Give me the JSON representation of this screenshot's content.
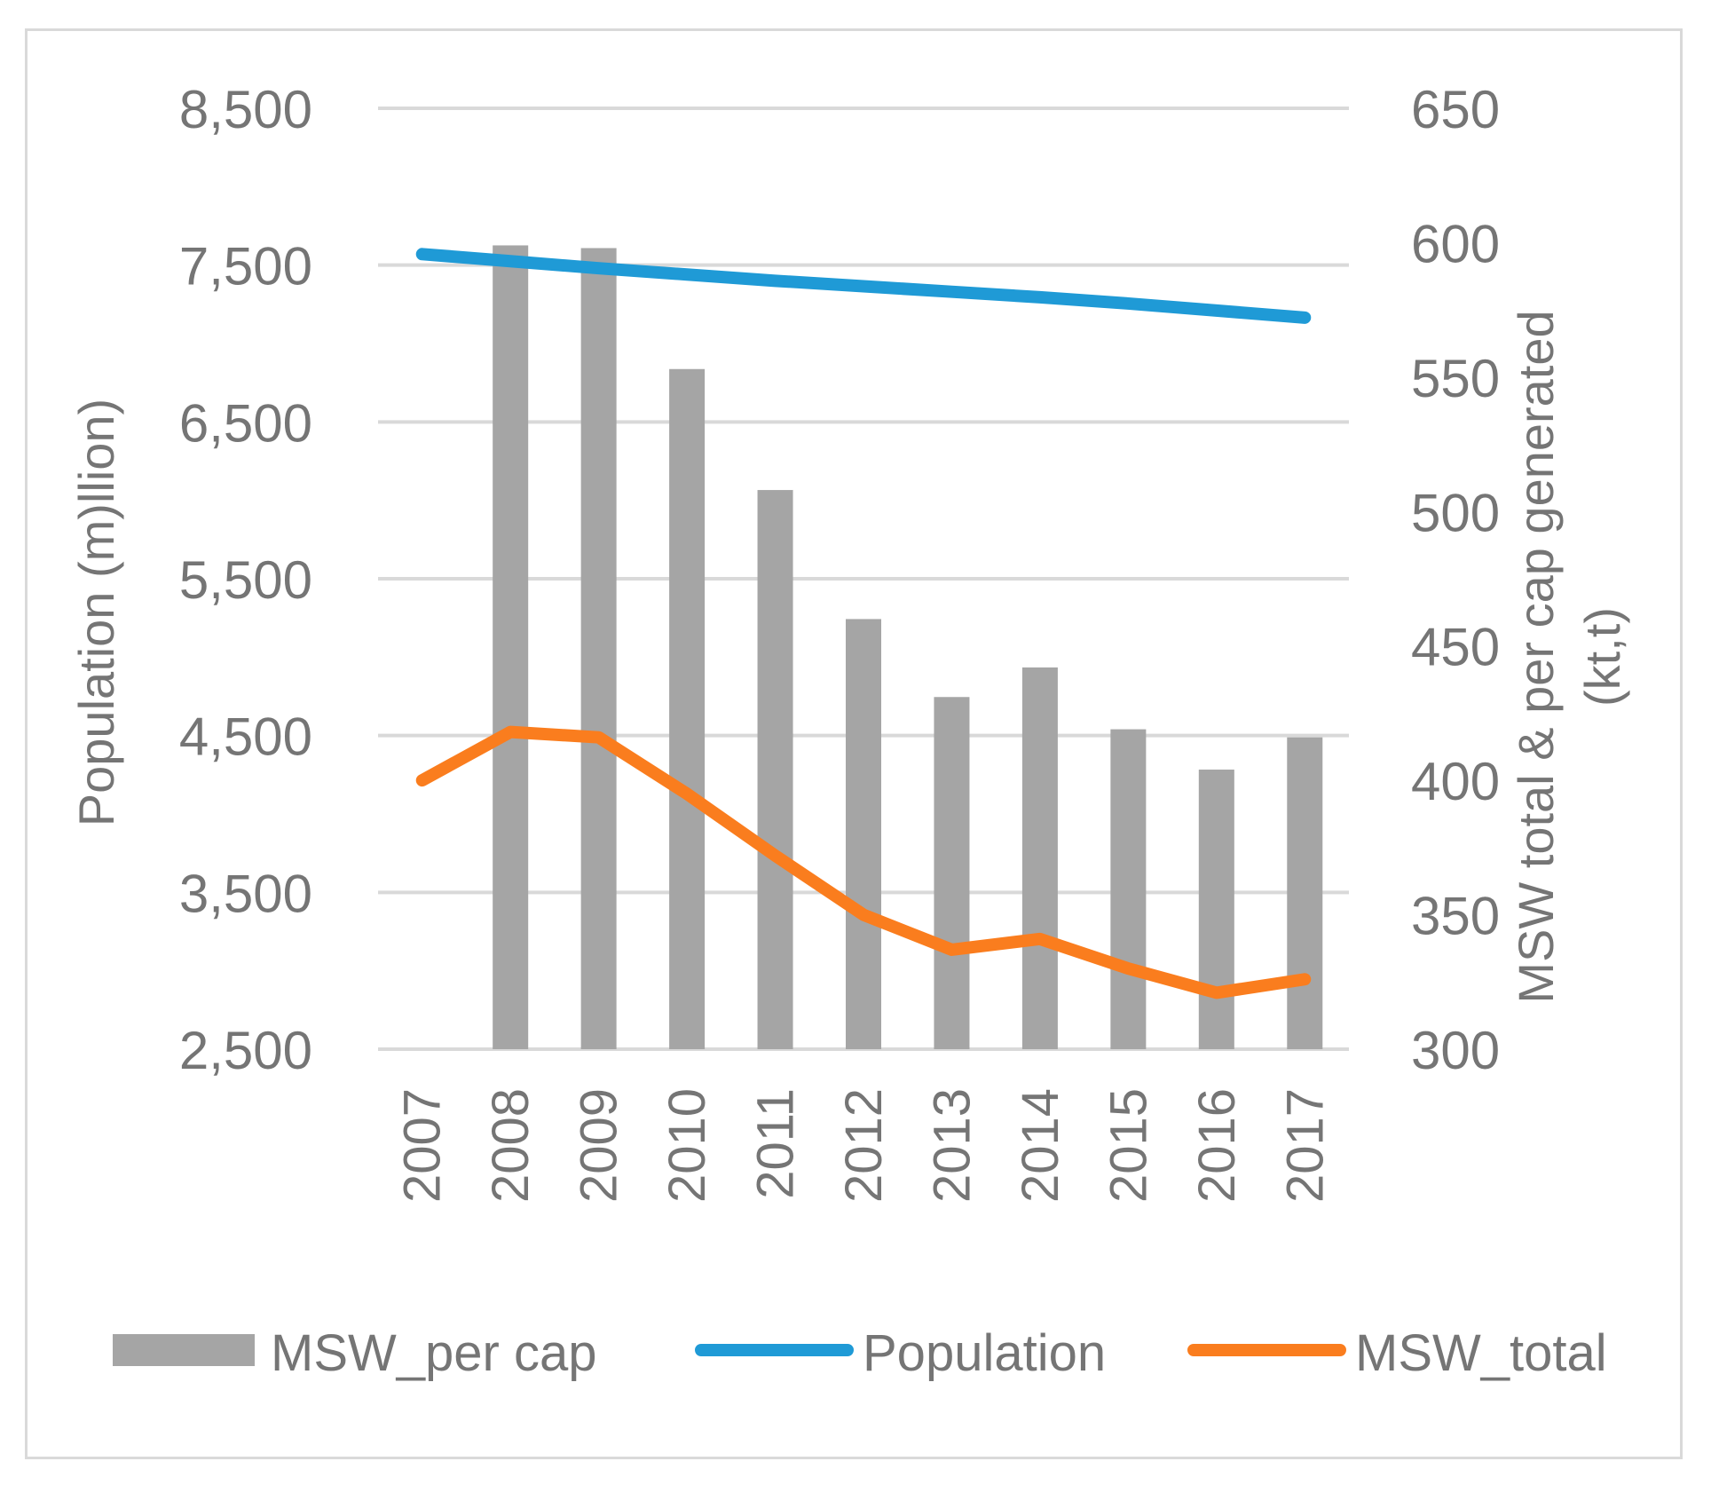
{
  "chart_data": {
    "type": "bar+line",
    "categories": [
      "2007",
      "2008",
      "2009",
      "2010",
      "2011",
      "2012",
      "2013",
      "2014",
      "2015",
      "2016",
      "2017"
    ],
    "series": [
      {
        "name": "MSW_per cap",
        "type": "bar",
        "axis": "right",
        "color": "#a5a5a5",
        "values": [
          null,
          599,
          598,
          553,
          508,
          460,
          431,
          442,
          419,
          404,
          416
        ]
      },
      {
        "name": "Population",
        "type": "line",
        "axis": "left",
        "color": "#1f9ad6",
        "values": [
          7570,
          7525,
          7480,
          7440,
          7400,
          7365,
          7330,
          7295,
          7255,
          7210,
          7165
        ]
      },
      {
        "name": "MSW_total",
        "type": "line",
        "axis": "right",
        "color": "#fa7d1e",
        "values": [
          400,
          418,
          416,
          395,
          372,
          350,
          337,
          341,
          330,
          321,
          326
        ]
      }
    ],
    "left_axis": {
      "label": "Population (m)llion)",
      "ticks": [
        "8,500",
        "7,500",
        "6,500",
        "5,500",
        "4,500",
        "3,500",
        "2,500"
      ],
      "ylim": [
        2500,
        8500
      ]
    },
    "right_axis": {
      "label_line1": "MSW total & per cap generated",
      "label_line2": "(kt,t)",
      "ticks": [
        "650",
        "600",
        "550",
        "500",
        "450",
        "400",
        "350",
        "300"
      ],
      "ylim": [
        300,
        650
      ]
    },
    "grid": true,
    "legend_position": "bottom",
    "legend": [
      "MSW_per cap",
      "Population",
      "MSW_total"
    ]
  }
}
